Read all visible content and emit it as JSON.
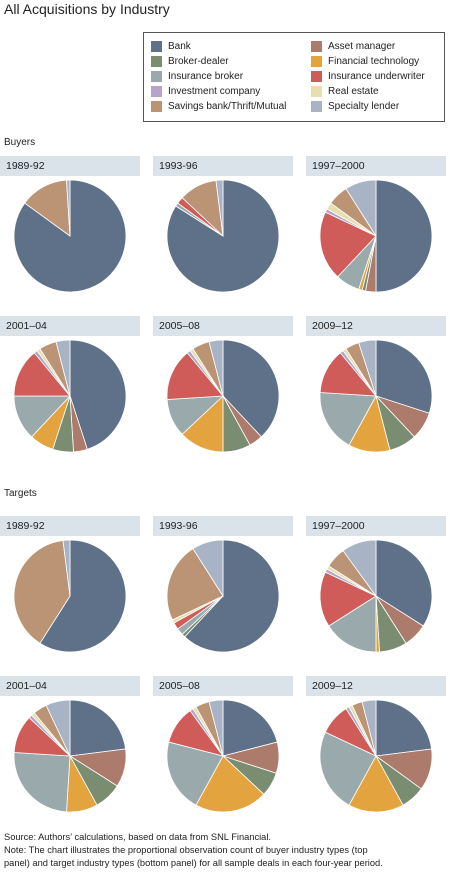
{
  "title": "All Acquisitions by Industry",
  "categories": [
    {
      "key": "bank",
      "label": "Bank",
      "color": "#5f7188"
    },
    {
      "key": "asset_manager",
      "label": "Asset manager",
      "color": "#ad7b6c"
    },
    {
      "key": "broker_dealer",
      "label": "Broker-dealer",
      "color": "#7b8d71"
    },
    {
      "key": "fintech",
      "label": "Financial technology",
      "color": "#e3a43f"
    },
    {
      "key": "insurance_broker",
      "label": "Insurance broker",
      "color": "#9aa9ac"
    },
    {
      "key": "insurance_underwriter",
      "label": "Insurance underwriter",
      "color": "#cf5c58"
    },
    {
      "key": "investment_company",
      "label": "Investment company",
      "color": "#b6a5c9"
    },
    {
      "key": "real_estate",
      "label": "Real estate",
      "color": "#e7dfae"
    },
    {
      "key": "savings_bank",
      "label": "Savings bank/Thrift/Mutual",
      "color": "#ba9474"
    },
    {
      "key": "specialty_lender",
      "label": "Specialty lender",
      "color": "#a8b4c6"
    }
  ],
  "panels": {
    "buyers_label": "Buyers",
    "targets_label": "Targets"
  },
  "chart_data": [
    {
      "panel": "Buyers",
      "type": "pie",
      "categories": [
        "Bank",
        "Asset manager",
        "Broker-dealer",
        "Financial technology",
        "Insurance broker",
        "Insurance underwriter",
        "Investment company",
        "Real estate",
        "Savings bank/Thrift/Mutual",
        "Specialty lender"
      ],
      "charts": [
        {
          "period": "1989-92",
          "values": [
            85,
            0,
            0,
            0,
            0,
            0,
            0,
            0,
            14,
            1
          ]
        },
        {
          "period": "1993-96",
          "values": [
            84,
            0,
            0,
            0,
            1,
            2,
            0,
            0,
            11,
            2
          ]
        },
        {
          "period": "1997–2000",
          "values": [
            50,
            3,
            1,
            1,
            7,
            20,
            1,
            2,
            6,
            9
          ]
        },
        {
          "period": "2001–04",
          "values": [
            45,
            4,
            6,
            7,
            13,
            14,
            1,
            1,
            5,
            4
          ]
        },
        {
          "period": "2005–08",
          "values": [
            38,
            4,
            8,
            13,
            11,
            15,
            1,
            1,
            5,
            4
          ]
        },
        {
          "period": "2009–12",
          "values": [
            30,
            8,
            8,
            12,
            18,
            13,
            1,
            1,
            4,
            5
          ]
        }
      ]
    },
    {
      "panel": "Targets",
      "type": "pie",
      "categories": [
        "Bank",
        "Asset manager",
        "Broker-dealer",
        "Financial technology",
        "Insurance broker",
        "Insurance underwriter",
        "Investment company",
        "Real estate",
        "Savings bank/Thrift/Mutual",
        "Specialty lender"
      ],
      "charts": [
        {
          "period": "1989-92",
          "values": [
            59,
            0,
            0,
            0,
            0,
            0,
            0,
            0,
            39,
            2
          ]
        },
        {
          "period": "1993-96",
          "values": [
            62,
            0,
            1,
            0,
            2,
            2,
            0,
            1,
            23,
            9
          ]
        },
        {
          "period": "1997–2000",
          "values": [
            34,
            7,
            8,
            1,
            16,
            16,
            1,
            1,
            6,
            10
          ]
        },
        {
          "period": "2001–04",
          "values": [
            23,
            11,
            8,
            9,
            25,
            11,
            1,
            1,
            4,
            7
          ]
        },
        {
          "period": "2005–08",
          "values": [
            21,
            9,
            7,
            21,
            21,
            11,
            1,
            1,
            4,
            4
          ]
        },
        {
          "period": "2009–12",
          "values": [
            23,
            12,
            7,
            16,
            24,
            9,
            1,
            1,
            3,
            4
          ]
        }
      ]
    }
  ],
  "footnote": {
    "line1": "Source: Authors’ calculations, based on data from SNL Financial.",
    "line2": "Note: The chart illustrates the proportional observation count of buyer industry types (top",
    "line3": "panel) and target industry types (bottom panel) for all sample deals in each four-year period."
  }
}
